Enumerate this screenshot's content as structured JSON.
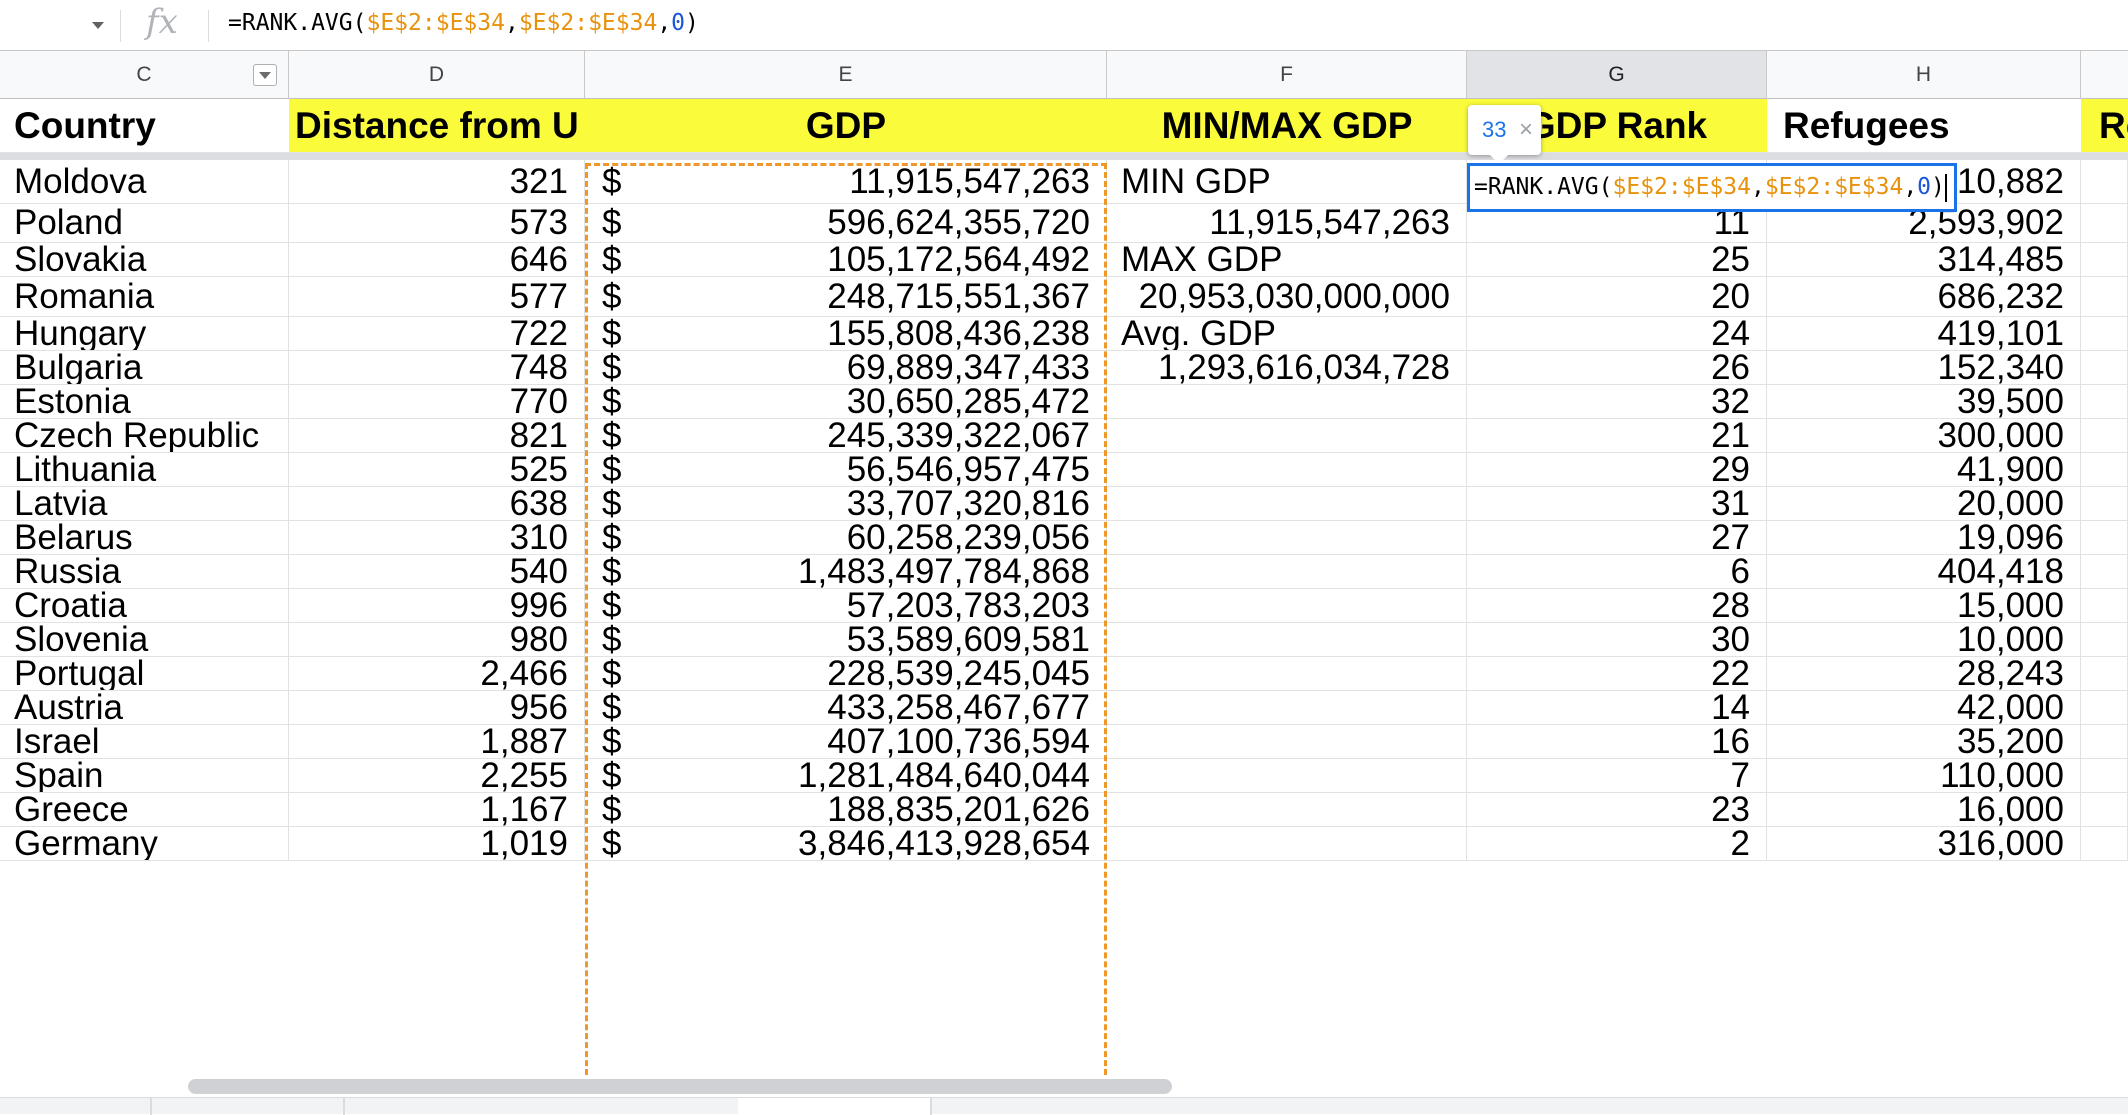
{
  "formula_bar": {
    "fx_icon": "fx-icon",
    "parts": [
      {
        "t": "=RANK.AVG(",
        "c": "txt"
      },
      {
        "t": "$E$2:$E$34",
        "c": "ref"
      },
      {
        "t": ",",
        "c": "txt"
      },
      {
        "t": "$E$2:$E$34",
        "c": "ref"
      },
      {
        "t": ",",
        "c": "txt"
      },
      {
        "t": "0",
        "c": "num"
      },
      {
        "t": ")",
        "c": "txt"
      }
    ]
  },
  "column_headers": [
    "C",
    "D",
    "E",
    "F",
    "G",
    "H"
  ],
  "selected_column": "G",
  "header_row": {
    "country": "Country",
    "distance": "Distance from U",
    "gdp": "GDP",
    "minmax": "MIN/MAX GDP",
    "gdp_rank": "GDP Rank",
    "refugees": "Refugees",
    "next": "Re"
  },
  "currency_symbol": "$",
  "rows": [
    {
      "country": "Moldova",
      "distance": "321",
      "gdp": "11,915,547,263",
      "minmax": "MIN GDP",
      "rank": "",
      "refugees": "10,882"
    },
    {
      "country": "Poland",
      "distance": "573",
      "gdp": "596,624,355,720",
      "minmax": "11,915,547,263",
      "rank": "11",
      "refugees": "2,593,902"
    },
    {
      "country": "Slovakia",
      "distance": "646",
      "gdp": "105,172,564,492",
      "minmax": "MAX GDP",
      "rank": "25",
      "refugees": "314,485"
    },
    {
      "country": "Romania",
      "distance": "577",
      "gdp": "248,715,551,367",
      "minmax": "20,953,030,000,000",
      "rank": "20",
      "refugees": "686,232"
    },
    {
      "country": "Hungary",
      "distance": "722",
      "gdp": "155,808,436,238",
      "minmax": "Avg. GDP",
      "rank": "24",
      "refugees": "419,101"
    },
    {
      "country": "Bulgaria",
      "distance": "748",
      "gdp": "69,889,347,433",
      "minmax": "1,293,616,034,728",
      "rank": "26",
      "refugees": "152,340"
    },
    {
      "country": "Estonia",
      "distance": "770",
      "gdp": "30,650,285,472",
      "minmax": "",
      "rank": "32",
      "refugees": "39,500"
    },
    {
      "country": "Czech Republic",
      "distance": "821",
      "gdp": "245,339,322,067",
      "minmax": "",
      "rank": "21",
      "refugees": "300,000"
    },
    {
      "country": "Lithuania",
      "distance": "525",
      "gdp": "56,546,957,475",
      "minmax": "",
      "rank": "29",
      "refugees": "41,900"
    },
    {
      "country": "Latvia",
      "distance": "638",
      "gdp": "33,707,320,816",
      "minmax": "",
      "rank": "31",
      "refugees": "20,000"
    },
    {
      "country": "Belarus",
      "distance": "310",
      "gdp": "60,258,239,056",
      "minmax": "",
      "rank": "27",
      "refugees": "19,096"
    },
    {
      "country": "Russia",
      "distance": "540",
      "gdp": "1,483,497,784,868",
      "minmax": "",
      "rank": "6",
      "refugees": "404,418"
    },
    {
      "country": "Croatia",
      "distance": "996",
      "gdp": "57,203,783,203",
      "minmax": "",
      "rank": "28",
      "refugees": "15,000"
    },
    {
      "country": "Slovenia",
      "distance": "980",
      "gdp": "53,589,609,581",
      "minmax": "",
      "rank": "30",
      "refugees": "10,000"
    },
    {
      "country": "Portugal",
      "distance": "2,466",
      "gdp": "228,539,245,045",
      "minmax": "",
      "rank": "22",
      "refugees": "28,243"
    },
    {
      "country": "Austria",
      "distance": "956",
      "gdp": "433,258,467,677",
      "minmax": "",
      "rank": "14",
      "refugees": "42,000"
    },
    {
      "country": "Israel",
      "distance": "1,887",
      "gdp": "407,100,736,594",
      "minmax": "",
      "rank": "16",
      "refugees": "35,200"
    },
    {
      "country": "Spain",
      "distance": "2,255",
      "gdp": "1,281,484,640,044",
      "minmax": "",
      "rank": "7",
      "refugees": "110,000"
    },
    {
      "country": "Greece",
      "distance": "1,167",
      "gdp": "188,835,201,626",
      "minmax": "",
      "rank": "23",
      "refugees": "16,000"
    },
    {
      "country": "Germany",
      "distance": "1,019",
      "gdp": "3,846,413,928,654",
      "minmax": "",
      "rank": "2",
      "refugees": "316,000"
    }
  ],
  "preview_tooltip": {
    "value": "33",
    "close_icon": "close-icon"
  },
  "colors": {
    "header_fill": "#fafb3a",
    "marquee": "#f0972b",
    "editor_border": "#1a73e8",
    "reference": "#e8910c",
    "number": "#1a56d6"
  }
}
